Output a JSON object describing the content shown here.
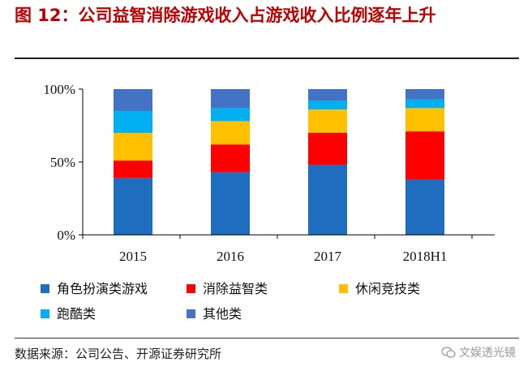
{
  "title": "图 12：公司益智消除游戏收入占游戏收入比例逐年上升",
  "source": "数据来源：公司公告、开源证券研究所",
  "watermark": "文娱透光镜",
  "chart_data": {
    "type": "stacked-bar",
    "title": "图 12：公司益智消除游戏收入占游戏收入比例逐年上升",
    "categories": [
      "2015",
      "2016",
      "2017",
      "2018H1"
    ],
    "ylim": [
      0,
      100
    ],
    "yticks": [
      0,
      50,
      100
    ],
    "ytick_labels": [
      "0%",
      "50%",
      "100%"
    ],
    "xlabel": "",
    "ylabel": "",
    "grid": false,
    "legend_position": "bottom",
    "series": [
      {
        "name": "角色扮演类游戏",
        "color": "#1f6dbf",
        "values": [
          39,
          43,
          48,
          38
        ]
      },
      {
        "name": "消除益智类",
        "color": "#ff0000",
        "values": [
          12,
          19,
          22,
          33
        ]
      },
      {
        "name": "休闲竞技类",
        "color": "#ffc000",
        "values": [
          19,
          16,
          16,
          16
        ]
      },
      {
        "name": "跑酷类",
        "color": "#00b0f0",
        "values": [
          15,
          9,
          6,
          6
        ]
      },
      {
        "name": "其他类",
        "color": "#4472c4",
        "values": [
          15,
          13,
          8,
          7
        ]
      }
    ]
  }
}
